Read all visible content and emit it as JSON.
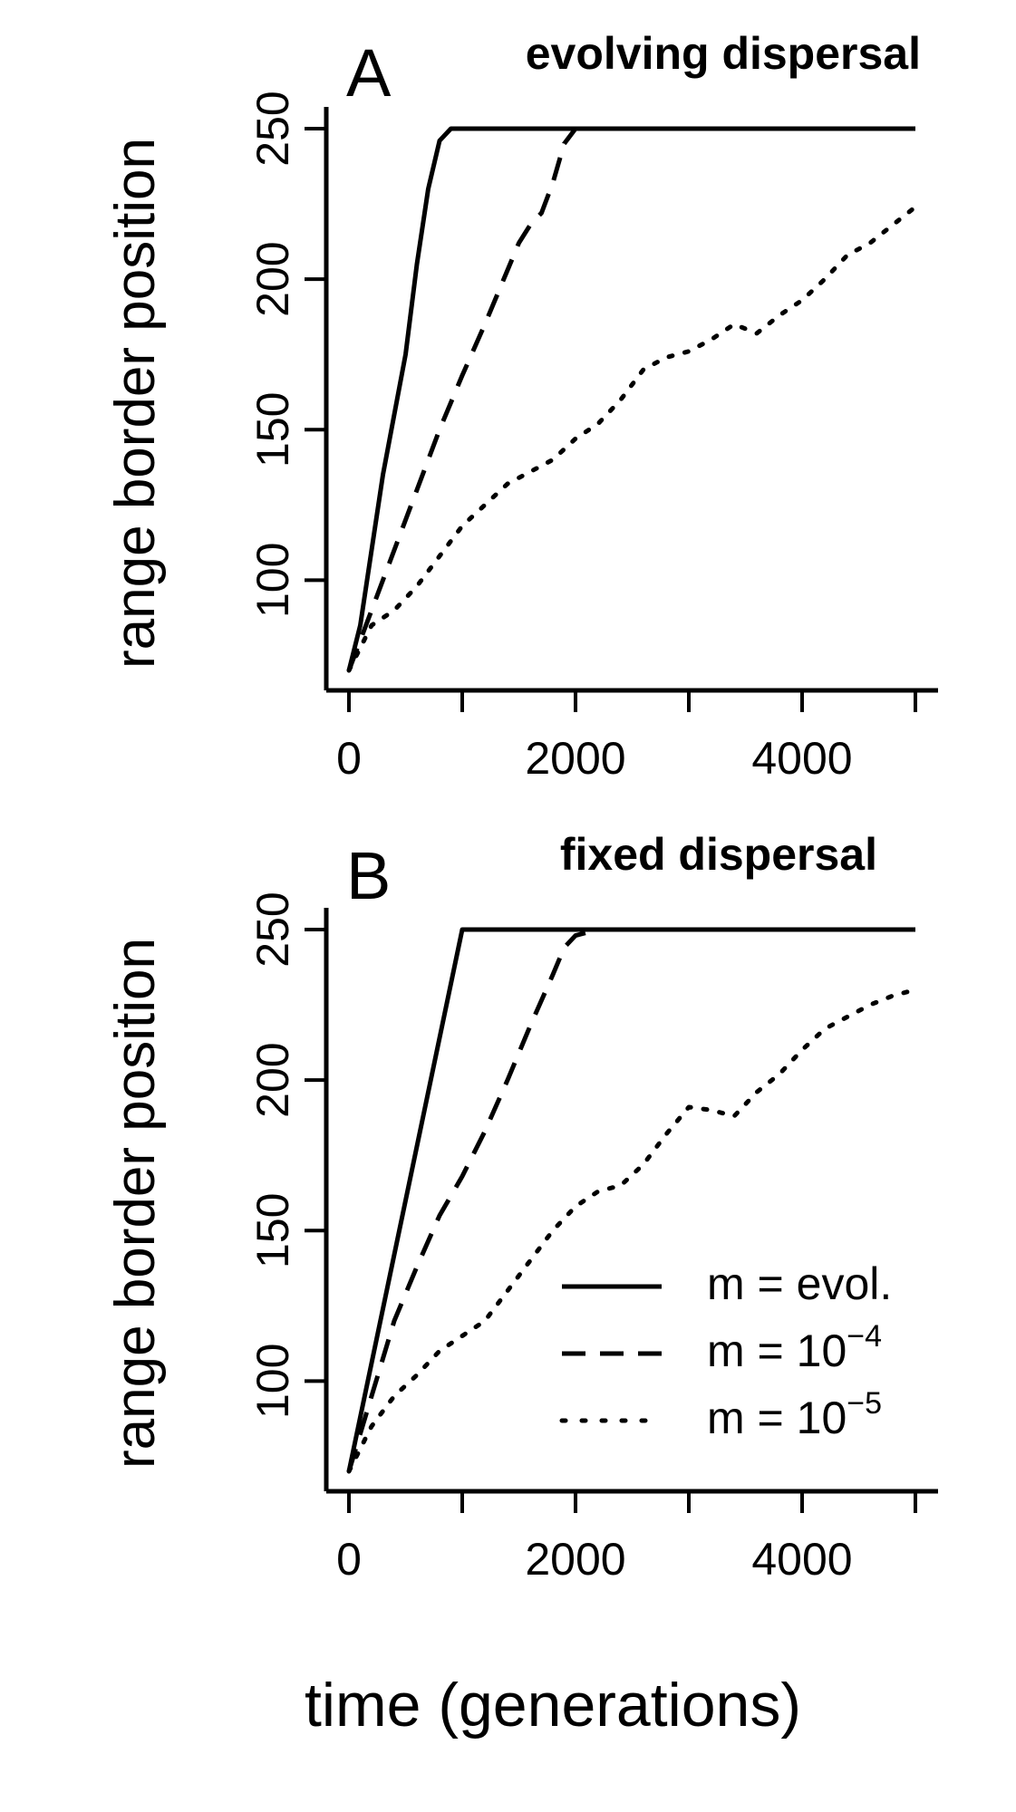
{
  "chart_data": [
    {
      "type": "line",
      "panel_label": "A",
      "title": "evolving dispersal",
      "xlabel": "",
      "ylabel": "range border position",
      "xlim": [
        -200,
        5200
      ],
      "ylim": [
        68,
        258
      ],
      "x_ticks": [
        0,
        1000,
        2000,
        3000,
        4000,
        5000
      ],
      "x_tick_labels": [
        "0",
        "",
        "2000",
        "",
        "4000",
        ""
      ],
      "y_ticks": [
        100,
        150,
        200,
        250
      ],
      "y_tick_labels": [
        "100",
        "150",
        "200",
        "250"
      ],
      "series": [
        {
          "id": "solid",
          "style": "solid",
          "x": [
            0,
            100,
            200,
            300,
            400,
            500,
            600,
            700,
            800,
            900,
            5000
          ],
          "y": [
            70,
            85,
            110,
            135,
            155,
            175,
            205,
            230,
            246,
            250,
            250
          ]
        },
        {
          "id": "dashed",
          "style": "dashed",
          "x": [
            0,
            200,
            400,
            600,
            800,
            1000,
            1200,
            1400,
            1500,
            1600,
            1700,
            1800,
            1900,
            2000,
            5000
          ],
          "y": [
            70,
            90,
            110,
            130,
            150,
            168,
            185,
            203,
            212,
            218,
            222,
            232,
            245,
            250,
            250
          ]
        },
        {
          "id": "dotted",
          "style": "dotted",
          "x": [
            0,
            200,
            400,
            600,
            800,
            1000,
            1200,
            1400,
            1600,
            1800,
            2000,
            2200,
            2400,
            2600,
            2800,
            3000,
            3200,
            3400,
            3600,
            3800,
            4000,
            4200,
            4400,
            4600,
            4800,
            5000
          ],
          "y": [
            70,
            85,
            90,
            98,
            108,
            118,
            125,
            132,
            136,
            140,
            147,
            152,
            160,
            170,
            174,
            176,
            180,
            185,
            182,
            188,
            193,
            200,
            208,
            212,
            218,
            224
          ]
        }
      ]
    },
    {
      "type": "line",
      "panel_label": "B",
      "title": "fixed dispersal",
      "xlabel": "time (generations)",
      "ylabel": "range border position",
      "xlim": [
        -200,
        5200
      ],
      "ylim": [
        68,
        258
      ],
      "x_ticks": [
        0,
        1000,
        2000,
        3000,
        4000,
        5000
      ],
      "x_tick_labels": [
        "0",
        "",
        "2000",
        "",
        "4000",
        ""
      ],
      "y_ticks": [
        100,
        150,
        200,
        250
      ],
      "y_tick_labels": [
        "100",
        "150",
        "200",
        "250"
      ],
      "legend": {
        "placement": "bottom-right",
        "entries": [
          {
            "series": "solid",
            "style": "solid",
            "label": "m = evol.",
            "exponent": ""
          },
          {
            "series": "dashed",
            "style": "dashed",
            "label": "m = 10",
            "exponent": "−4"
          },
          {
            "series": "dotted",
            "style": "dotted",
            "label": "m = 10",
            "exponent": "−5"
          }
        ]
      },
      "series": [
        {
          "id": "solid",
          "style": "solid",
          "x": [
            0,
            1000,
            5000
          ],
          "y": [
            70,
            250,
            250
          ]
        },
        {
          "id": "dashed",
          "style": "dashed",
          "x": [
            0,
            200,
            400,
            600,
            800,
            1000,
            1200,
            1400,
            1600,
            1800,
            1900,
            2000,
            2200,
            5000
          ],
          "y": [
            70,
            95,
            120,
            138,
            155,
            168,
            183,
            200,
            218,
            235,
            244,
            248,
            250,
            250
          ]
        },
        {
          "id": "dotted",
          "style": "dotted",
          "x": [
            0,
            200,
            400,
            600,
            800,
            1000,
            1200,
            1400,
            1600,
            1800,
            2000,
            2200,
            2400,
            2600,
            2800,
            3000,
            3200,
            3400,
            3600,
            3800,
            4000,
            4200,
            4400,
            4600,
            4800,
            5000
          ],
          "y": [
            70,
            85,
            95,
            102,
            110,
            115,
            120,
            130,
            140,
            150,
            158,
            163,
            165,
            172,
            182,
            191,
            190,
            188,
            196,
            202,
            210,
            217,
            221,
            225,
            228,
            230
          ]
        }
      ]
    }
  ]
}
